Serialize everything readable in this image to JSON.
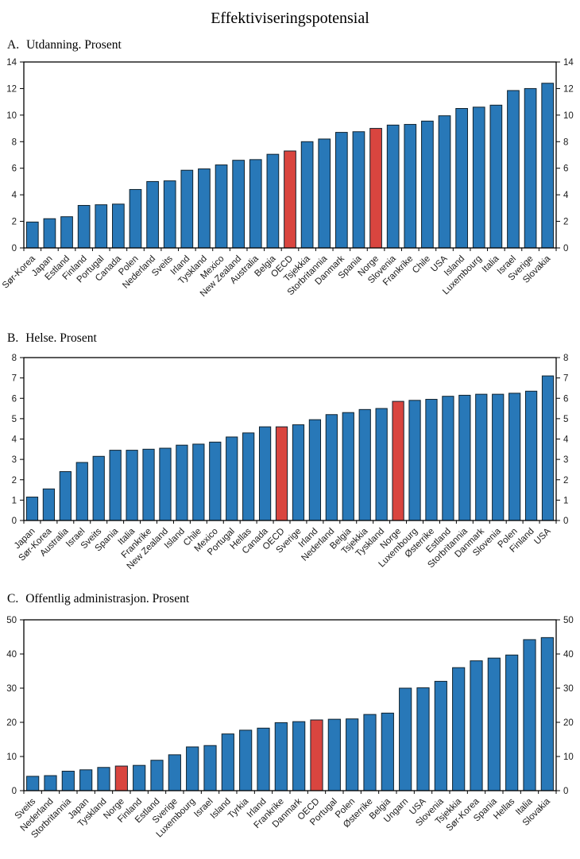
{
  "title": "Effektiviseringspotensial",
  "colors": {
    "bar": "#2878B8",
    "bar_highlight": "#D9453F",
    "bar_outline": "#10222e",
    "axis": "#000000",
    "background": "#FFFFFF",
    "text": "#1a1a1a"
  },
  "chart_data": [
    {
      "type": "bar",
      "panel_label": "A.",
      "title": "Utdanning. Prosent",
      "categories": [
        "Sør-Korea",
        "Japan",
        "Estland",
        "Finland",
        "Portugal",
        "Canada",
        "Polen",
        "Nederland",
        "Sveits",
        "Irland",
        "Tyskland",
        "Mexico",
        "New Zealand",
        "Australia",
        "Belgia",
        "OECD",
        "Tsjekkia",
        "Storbritannia",
        "Danmark",
        "Spania",
        "Norge",
        "Slovenia",
        "Frankrike",
        "Chile",
        "USA",
        "Island",
        "Luxembourg",
        "Italia",
        "Israel",
        "Sverige",
        "Slovakia"
      ],
      "values": [
        1.95,
        2.2,
        2.35,
        3.2,
        3.25,
        3.3,
        4.4,
        5.0,
        5.05,
        5.85,
        5.95,
        6.25,
        6.6,
        6.65,
        7.05,
        7.3,
        8.0,
        8.2,
        8.7,
        8.75,
        9.0,
        9.25,
        9.3,
        9.55,
        9.95,
        10.5,
        10.6,
        10.75,
        11.85,
        12.0,
        12.4
      ],
      "highlighted_categories": [
        "OECD",
        "Norge"
      ],
      "ylim": [
        0,
        14
      ],
      "ytick_step": 2,
      "grid": false,
      "legend": "none"
    },
    {
      "type": "bar",
      "panel_label": "B.",
      "title": "Helse. Prosent",
      "categories": [
        "Japan",
        "Sør-Korea",
        "Australia",
        "Israel",
        "Sveits",
        "Spania",
        "Italia",
        "Frankrike",
        "New Zealand",
        "Island",
        "Chile",
        "Mexico",
        "Portugal",
        "Hellas",
        "Canada",
        "OECD",
        "Sverige",
        "Irland",
        "Nederland",
        "Belgia",
        "Tsjekkia",
        "Tyskland",
        "Norge",
        "Luxembourg",
        "Østerrike",
        "Estland",
        "Storbritannia",
        "Danmark",
        "Slovenia",
        "Polen",
        "Finland",
        "USA"
      ],
      "values": [
        1.15,
        1.55,
        2.4,
        2.85,
        3.15,
        3.45,
        3.45,
        3.5,
        3.55,
        3.7,
        3.75,
        3.85,
        4.1,
        4.3,
        4.6,
        4.6,
        4.7,
        4.95,
        5.2,
        5.3,
        5.45,
        5.5,
        5.85,
        5.9,
        5.95,
        6.1,
        6.15,
        6.2,
        6.2,
        6.25,
        6.35,
        7.1
      ],
      "highlighted_categories": [
        "OECD",
        "Norge"
      ],
      "ylim": [
        0,
        8
      ],
      "ytick_step": 1,
      "grid": false,
      "legend": "none"
    },
    {
      "type": "bar",
      "panel_label": "C.",
      "title": "Offentlig administrasjon. Prosent",
      "categories": [
        "Sveits",
        "Nederland",
        "Storbritannia",
        "Japan",
        "Tyskland",
        "Norge",
        "Finland",
        "Estland",
        "Sverige",
        "Luxembourg",
        "Israel",
        "Island",
        "Tyrkia",
        "Irland",
        "Frankrike",
        "Danmark",
        "OECD",
        "Portugal",
        "Polen",
        "Østerrike",
        "Belgia",
        "Ungarn",
        "USA",
        "Slovenia",
        "Tsjekkia",
        "Sør-Korea",
        "Spania",
        "Hellas",
        "Italia",
        "Slovakia"
      ],
      "values": [
        4.2,
        4.4,
        5.7,
        6.1,
        6.8,
        7.2,
        7.4,
        8.9,
        10.5,
        12.8,
        13.2,
        16.6,
        17.7,
        18.3,
        19.9,
        20.2,
        20.7,
        20.9,
        21.0,
        22.3,
        22.7,
        30.0,
        30.1,
        32.0,
        36.0,
        38.0,
        38.8,
        39.7,
        44.2,
        44.8
      ],
      "highlighted_categories": [
        "OECD",
        "Norge"
      ],
      "ylim": [
        0,
        50
      ],
      "ytick_step": 10,
      "grid": false,
      "legend": "none"
    }
  ]
}
